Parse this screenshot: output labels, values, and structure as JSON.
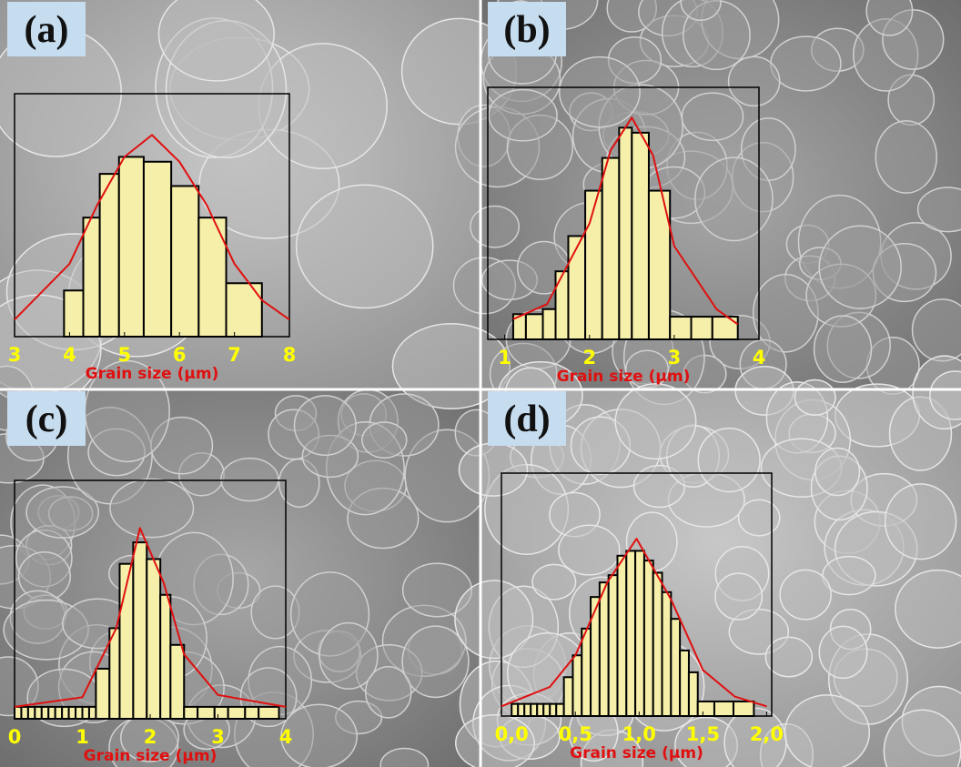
{
  "chart_data": [
    {
      "type": "histogram",
      "label": "(a)",
      "xlabel": "Grain size (μm)",
      "bins": [
        3.9,
        4.25,
        4.55,
        4.9,
        5.35,
        5.85,
        6.35,
        6.85,
        7.5
      ],
      "values": [
        19,
        49,
        67,
        74,
        72,
        62,
        49,
        22
      ],
      "color": "#f6efaa",
      "xlim": [
        3,
        8
      ],
      "xticks": [
        3,
        4,
        5,
        6,
        7,
        8
      ],
      "ylim": [
        0,
        100
      ],
      "fit": {
        "color": "#e01010",
        "x": [
          3,
          4,
          4.5,
          5,
          5.5,
          6,
          6.5,
          7,
          7.5,
          8
        ],
        "values": [
          7,
          30,
          54,
          74,
          83,
          72,
          54,
          30,
          15,
          7
        ]
      }
    },
    {
      "type": "histogram",
      "label": "(b)",
      "xlabel": "Grain size (μm)",
      "bins": [
        1.1,
        1.25,
        1.45,
        1.6,
        1.75,
        1.95,
        2.15,
        2.35,
        2.5,
        2.7,
        2.95,
        3.2,
        3.45,
        3.75
      ],
      "values": [
        10,
        10,
        12,
        27,
        41,
        59,
        72,
        84,
        82,
        59,
        9,
        9,
        9
      ],
      "color": "#f6efaa",
      "xlim": [
        0.8,
        4
      ],
      "xticks": [
        1,
        2,
        3,
        4
      ],
      "ylim": [
        0,
        100
      ],
      "fit": {
        "color": "#e01010",
        "x": [
          1.1,
          1.5,
          2,
          2.25,
          2.5,
          2.75,
          3,
          3.5,
          3.75
        ],
        "values": [
          8,
          14,
          46,
          75,
          88,
          73,
          37,
          12,
          6
        ]
      }
    },
    {
      "type": "histogram",
      "label": "(c)",
      "xlabel": "Grain size (μm)",
      "bins": [
        0,
        0.1,
        0.2,
        0.3,
        0.4,
        0.5,
        0.6,
        0.7,
        0.8,
        0.9,
        1.0,
        1.1,
        1.2,
        1.4,
        1.55,
        1.75,
        1.95,
        2.15,
        2.3,
        2.5,
        2.7,
        2.95,
        3.15,
        3.4,
        3.6,
        3.9
      ],
      "values": [
        5,
        5,
        5,
        5,
        5,
        5,
        5,
        5,
        5,
        5,
        5,
        5,
        21,
        38,
        65,
        74,
        67,
        52,
        31,
        5,
        5,
        5,
        5,
        5,
        5
      ],
      "color": "#f6efaa",
      "xlim": [
        0,
        4
      ],
      "xticks": [
        0,
        1,
        2,
        3,
        4
      ],
      "ylim": [
        0,
        100
      ],
      "fit": {
        "color": "#e01010",
        "x": [
          0,
          1,
          1.5,
          1.85,
          2.2,
          2.5,
          3,
          4
        ],
        "values": [
          5,
          9,
          38,
          80,
          57,
          27,
          10,
          5
        ]
      }
    },
    {
      "type": "histogram",
      "label": "(d)",
      "xlabel": "Grain size (μm)",
      "bins": [
        0,
        0.05,
        0.1,
        0.15,
        0.2,
        0.25,
        0.3,
        0.35,
        0.41,
        0.48,
        0.55,
        0.62,
        0.69,
        0.76,
        0.83,
        0.9,
        0.97,
        1.04,
        1.11,
        1.18,
        1.25,
        1.32,
        1.39,
        1.46,
        1.59,
        1.74,
        1.9
      ],
      "values": [
        5,
        5,
        5,
        5,
        5,
        5,
        5,
        5,
        16,
        25,
        36,
        49,
        55,
        58,
        66,
        68,
        68,
        64,
        59,
        51,
        40,
        27,
        18,
        6,
        6,
        6
      ],
      "color": "#f6efaa",
      "xlim": [
        -0.08,
        2.04
      ],
      "xticks": [
        {
          "value": 0,
          "label": "0,0"
        },
        {
          "value": 0.5,
          "label": "0,5"
        },
        {
          "value": 1,
          "label": "1,0"
        },
        {
          "value": 1.5,
          "label": "1,5"
        },
        {
          "value": 2,
          "label": "2,0"
        }
      ],
      "ylim": [
        0,
        100
      ],
      "fit": {
        "color": "#e01010",
        "x": [
          -0.08,
          0.3,
          0.5,
          0.75,
          0.98,
          1.25,
          1.5,
          1.75,
          2.0
        ],
        "values": [
          4,
          12,
          25,
          55,
          73,
          48,
          19,
          8,
          4
        ]
      }
    }
  ]
}
